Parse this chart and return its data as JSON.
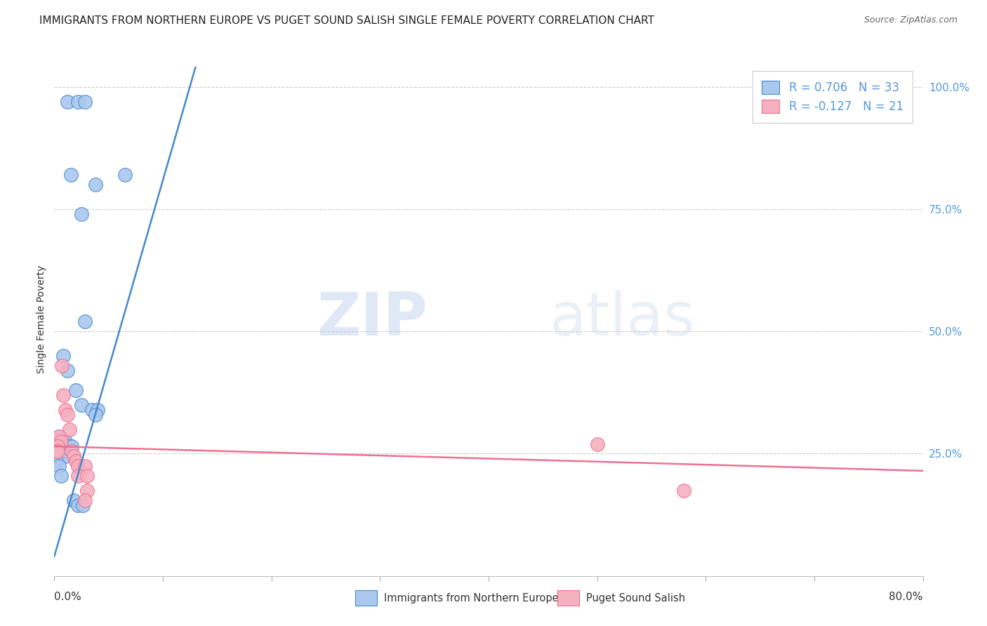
{
  "title": "IMMIGRANTS FROM NORTHERN EUROPE VS PUGET SOUND SALISH SINGLE FEMALE POVERTY CORRELATION CHART",
  "source": "Source: ZipAtlas.com",
  "ylabel": "Single Female Poverty",
  "ylabel_ticks": [
    "100.0%",
    "75.0%",
    "50.0%",
    "25.0%"
  ],
  "ylabel_tick_vals": [
    1.0,
    0.75,
    0.5,
    0.25
  ],
  "xlim": [
    0,
    0.8
  ],
  "ylim": [
    0,
    1.05
  ],
  "legend_label1": "Immigrants from Northern Europe",
  "legend_label2": "Puget Sound Salish",
  "R1": 0.706,
  "N1": 33,
  "R2": -0.127,
  "N2": 21,
  "color_blue": "#aac8ee",
  "color_pink": "#f5b0c0",
  "line_color_blue": "#4488cc",
  "line_color_pink": "#ee7090",
  "tick_color_blue": "#5599dd",
  "watermark_zip": "ZIP",
  "watermark_atlas": "atlas",
  "grid_color": "#cccccc",
  "bg_color": "#ffffff",
  "title_fontsize": 11,
  "axis_label_fontsize": 10,
  "tick_fontsize": 11,
  "marker_size": 200,
  "blue_points": [
    [
      0.012,
      0.97
    ],
    [
      0.022,
      0.97
    ],
    [
      0.028,
      0.97
    ],
    [
      0.015,
      0.82
    ],
    [
      0.025,
      0.74
    ],
    [
      0.038,
      0.8
    ],
    [
      0.065,
      0.82
    ],
    [
      0.028,
      0.52
    ],
    [
      0.008,
      0.45
    ],
    [
      0.012,
      0.42
    ],
    [
      0.02,
      0.38
    ],
    [
      0.025,
      0.35
    ],
    [
      0.035,
      0.34
    ],
    [
      0.04,
      0.34
    ],
    [
      0.038,
      0.33
    ],
    [
      0.004,
      0.285
    ],
    [
      0.006,
      0.275
    ],
    [
      0.008,
      0.275
    ],
    [
      0.01,
      0.275
    ],
    [
      0.012,
      0.265
    ],
    [
      0.014,
      0.265
    ],
    [
      0.016,
      0.265
    ],
    [
      0.002,
      0.255
    ],
    [
      0.004,
      0.255
    ],
    [
      0.006,
      0.255
    ],
    [
      0.008,
      0.255
    ],
    [
      0.01,
      0.245
    ],
    [
      0.002,
      0.235
    ],
    [
      0.004,
      0.225
    ],
    [
      0.006,
      0.205
    ],
    [
      0.018,
      0.155
    ],
    [
      0.022,
      0.145
    ],
    [
      0.026,
      0.145
    ]
  ],
  "pink_points": [
    [
      0.007,
      0.43
    ],
    [
      0.008,
      0.37
    ],
    [
      0.01,
      0.34
    ],
    [
      0.012,
      0.33
    ],
    [
      0.014,
      0.3
    ],
    [
      0.004,
      0.285
    ],
    [
      0.006,
      0.275
    ],
    [
      0.003,
      0.265
    ],
    [
      0.002,
      0.255
    ],
    [
      0.003,
      0.255
    ],
    [
      0.016,
      0.255
    ],
    [
      0.018,
      0.245
    ],
    [
      0.02,
      0.235
    ],
    [
      0.022,
      0.225
    ],
    [
      0.028,
      0.225
    ],
    [
      0.022,
      0.205
    ],
    [
      0.03,
      0.205
    ],
    [
      0.03,
      0.175
    ],
    [
      0.028,
      0.155
    ],
    [
      0.5,
      0.27
    ],
    [
      0.58,
      0.175
    ]
  ],
  "blue_line_x": [
    0.0,
    0.13
  ],
  "blue_line_y": [
    0.04,
    1.04
  ],
  "pink_line_x": [
    0.0,
    0.8
  ],
  "pink_line_y": [
    0.265,
    0.215
  ]
}
